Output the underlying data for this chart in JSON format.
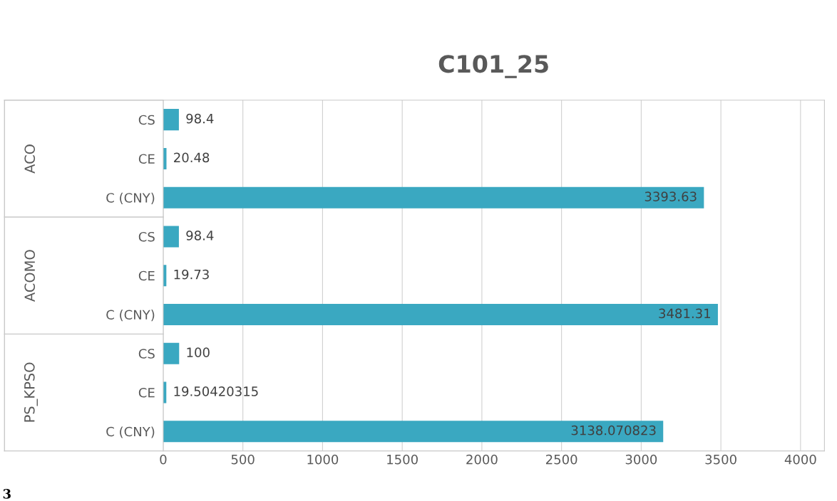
{
  "chart_data": {
    "type": "bar",
    "orientation": "horizontal",
    "title": "C101_25",
    "categories": [
      "CS",
      "CE",
      "C (CNY)",
      "CS",
      "CE",
      "C (CNY)",
      "CS",
      "CE",
      "C (CNY)"
    ],
    "values": [
      98.4,
      20.48,
      3393.63,
      98.4,
      19.73,
      3481.31,
      100,
      19.50420315,
      3138.070823
    ],
    "value_labels": [
      "98.4",
      "20.48",
      "3393.63",
      "98.4",
      "19.73",
      "3481.31",
      "100",
      "19.50420315",
      "3138.070823"
    ],
    "color": "#3aa8c1",
    "xlim": [
      0,
      4150
    ],
    "xticks": [
      0,
      500,
      1000,
      1500,
      2000,
      2500,
      3000,
      3500,
      4000
    ],
    "grid": "x",
    "annotations": [
      "ACO",
      "ACOMO",
      "PS_KPSO",
      "3"
    ]
  }
}
